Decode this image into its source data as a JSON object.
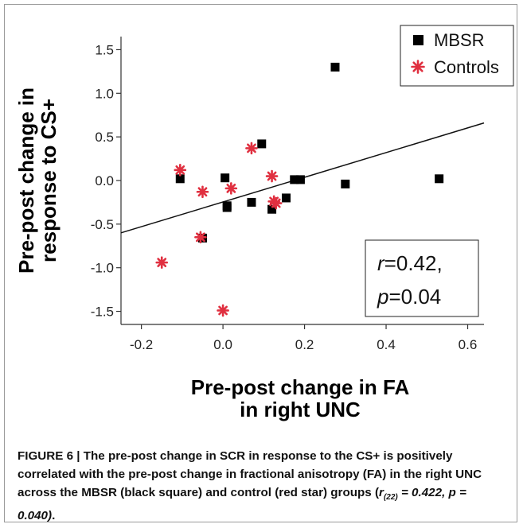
{
  "chart_data": {
    "type": "scatter",
    "xlabel_lines": [
      "Pre-post change in FA",
      "in right UNC"
    ],
    "ylabel_lines": [
      "Pre-post change in",
      "response to CS+"
    ],
    "xlim": [
      -0.25,
      0.64
    ],
    "ylim": [
      -1.65,
      1.65
    ],
    "x_ticks": [
      -0.2,
      0.0,
      0.2,
      0.4,
      0.6
    ],
    "x_tick_labels": [
      "-0.2",
      "0.0",
      "0.2",
      "0.4",
      "0.6"
    ],
    "y_ticks": [
      1.5,
      1.0,
      0.5,
      0.0,
      -0.5,
      -1.0,
      -1.5
    ],
    "y_tick_labels": [
      "1.5",
      "1.0",
      "0.5",
      "0.0",
      "-0.5",
      "-1.0",
      "-1.5"
    ],
    "legend_position": "top-right",
    "series": [
      {
        "name": "MBSR",
        "marker": "square",
        "color": "#000000",
        "points": [
          [
            0.275,
            1.3
          ],
          [
            0.095,
            0.42
          ],
          [
            0.005,
            0.03
          ],
          [
            -0.105,
            0.02
          ],
          [
            0.175,
            0.01
          ],
          [
            0.19,
            0.01
          ],
          [
            0.3,
            -0.04
          ],
          [
            0.53,
            0.02
          ],
          [
            0.155,
            -0.2
          ],
          [
            0.07,
            -0.25
          ],
          [
            0.01,
            -0.29
          ],
          [
            0.01,
            -0.31
          ],
          [
            0.12,
            -0.33
          ],
          [
            -0.05,
            -0.66
          ]
        ]
      },
      {
        "name": "Controls",
        "marker": "star",
        "color": "#e03040",
        "points": [
          [
            0.07,
            0.37
          ],
          [
            -0.105,
            0.12
          ],
          [
            0.12,
            0.05
          ],
          [
            -0.05,
            -0.13
          ],
          [
            0.02,
            -0.09
          ],
          [
            0.125,
            -0.24
          ],
          [
            0.13,
            -0.26
          ],
          [
            -0.055,
            -0.65
          ],
          [
            -0.15,
            -0.94
          ],
          [
            0.0,
            -1.49
          ]
        ]
      }
    ],
    "fit_line": {
      "x": [
        -0.25,
        0.64
      ],
      "y": [
        -0.6,
        0.66
      ]
    },
    "annotation": {
      "r_label": "r",
      "r_value": "=0.42,",
      "p_label": "p",
      "p_value": "=0.04"
    }
  },
  "caption": {
    "label": "FIGURE 6 |",
    "text": " The pre-post change in SCR in response to the CS+ is positively correlated with the pre-post change in fractional anisotropy (FA) in the right UNC across the MBSR (black square) and control (red star) groups (",
    "stat_r": "r",
    "stat_sub": "(22)",
    "stat_rest": " = 0.422, p = 0.040)",
    "end": "."
  }
}
